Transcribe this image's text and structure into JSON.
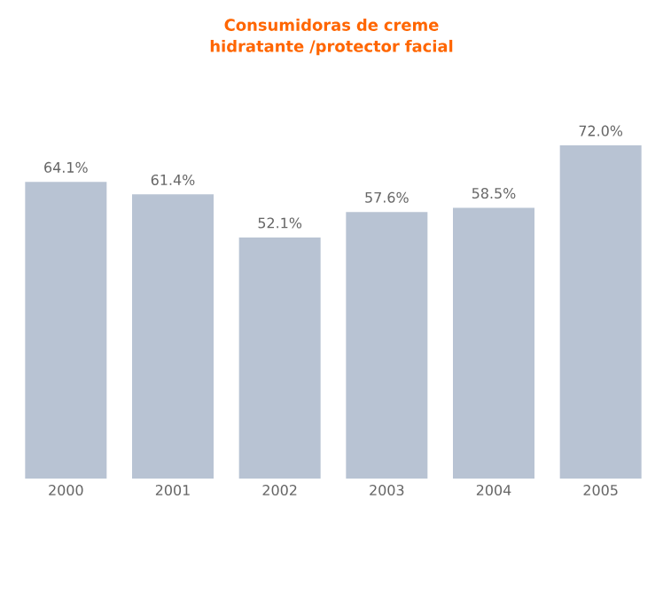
{
  "chart_data": {
    "type": "bar",
    "title": "Consumidoras de creme hidratante /protector facial",
    "categories": [
      "2000",
      "2001",
      "2002",
      "2003",
      "2004",
      "2005"
    ],
    "values": [
      64.1,
      61.4,
      52.1,
      57.6,
      58.5,
      72.0
    ],
    "value_labels": [
      "64.1%",
      "61.4%",
      "52.1%",
      "57.6%",
      "58.5%",
      "72.0%"
    ],
    "color": "#b8c3d3"
  }
}
